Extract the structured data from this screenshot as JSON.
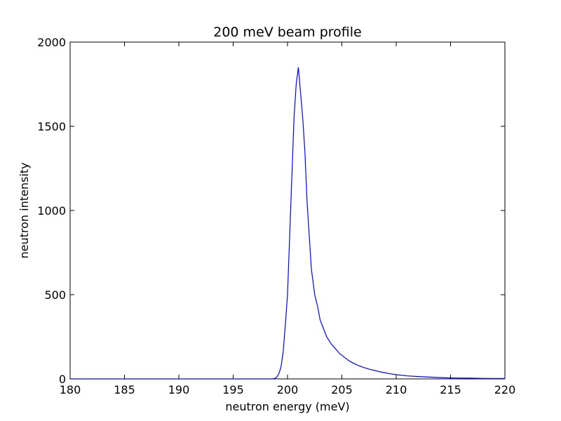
{
  "chart_data": {
    "type": "line",
    "title": "200 meV beam profile",
    "xlabel": "neutron energy (meV)",
    "ylabel": "neutron intensity",
    "xlim": [
      180,
      220
    ],
    "ylim": [
      0,
      2000
    ],
    "xticks": [
      180,
      185,
      190,
      195,
      200,
      205,
      210,
      215,
      220
    ],
    "yticks": [
      0,
      500,
      1000,
      1500,
      2000
    ],
    "grid": false,
    "series": [
      {
        "color": "#0000ff",
        "x": [
          180,
          195,
          198.5,
          198.8,
          199.0,
          199.2,
          199.4,
          199.6,
          199.8,
          200.0,
          200.2,
          200.4,
          200.6,
          200.8,
          201.0,
          201.2,
          201.4,
          201.6,
          201.8,
          202.0,
          202.2,
          202.5,
          202.8,
          203.0,
          203.3,
          203.6,
          204.0,
          204.4,
          204.8,
          205.2,
          205.6,
          206.0,
          206.5,
          207.0,
          207.5,
          208.0,
          208.5,
          209.0,
          209.5,
          210.0,
          211.0,
          212.0,
          213.0,
          214.0,
          215.0,
          216.0,
          217.0,
          218.0,
          219.0,
          220.0
        ],
        "y": [
          0,
          0,
          0,
          2,
          10,
          30,
          70,
          160,
          320,
          500,
          850,
          1200,
          1550,
          1750,
          1850,
          1700,
          1550,
          1350,
          1050,
          850,
          650,
          500,
          420,
          350,
          300,
          250,
          210,
          180,
          150,
          130,
          110,
          95,
          80,
          68,
          58,
          50,
          42,
          36,
          30,
          25,
          18,
          14,
          11,
          8,
          6,
          5,
          4,
          3,
          2,
          2
        ]
      }
    ]
  }
}
